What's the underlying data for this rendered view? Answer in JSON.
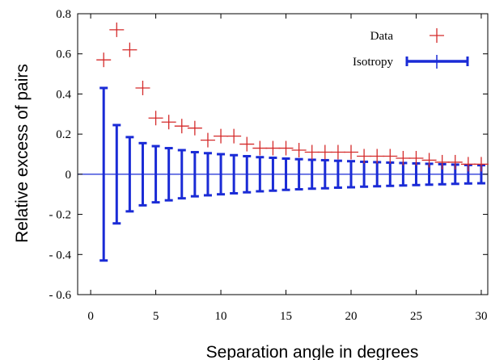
{
  "chart_data": {
    "type": "scatter",
    "xlabel": "Separation angle in degrees",
    "ylabel": "Relative excess of pairs",
    "xlim": [
      -1,
      30.5
    ],
    "ylim": [
      -0.6,
      0.8
    ],
    "xticks": [
      0,
      5,
      10,
      15,
      20,
      25,
      30
    ],
    "yticks": [
      -0.6,
      -0.4,
      -0.2,
      0,
      0.2,
      0.4,
      0.6,
      0.8
    ],
    "xtick_labels": [
      "0",
      "5",
      "10",
      "15",
      "20",
      "25",
      "30"
    ],
    "ytick_labels": [
      "- 0.6",
      "- 0.4",
      "- 0.2",
      "0",
      "0.2",
      "0.4",
      "0.6",
      "0.8"
    ],
    "grid": false,
    "legend_position": "top-right",
    "series": [
      {
        "name": "Data",
        "marker": "plus",
        "color": "#d42a2a",
        "x": [
          1,
          2,
          3,
          4,
          5,
          6,
          7,
          8,
          9,
          10,
          11,
          12,
          13,
          14,
          15,
          16,
          17,
          18,
          19,
          20,
          21,
          22,
          23,
          24,
          25,
          26,
          27,
          28,
          29,
          30
        ],
        "y": [
          0.57,
          0.72,
          0.62,
          0.43,
          0.28,
          0.26,
          0.24,
          0.23,
          0.17,
          0.19,
          0.19,
          0.15,
          0.13,
          0.13,
          0.13,
          0.12,
          0.11,
          0.11,
          0.11,
          0.11,
          0.09,
          0.09,
          0.09,
          0.08,
          0.08,
          0.07,
          0.06,
          0.06,
          0.05,
          0.05
        ]
      },
      {
        "name": "Isotropy",
        "marker": "errorbar",
        "color": "#1a2bd6",
        "x": [
          1,
          2,
          3,
          4,
          5,
          6,
          7,
          8,
          9,
          10,
          11,
          12,
          13,
          14,
          15,
          16,
          17,
          18,
          19,
          20,
          21,
          22,
          23,
          24,
          25,
          26,
          27,
          28,
          29,
          30
        ],
        "y": [
          0,
          0,
          0,
          0,
          0,
          0,
          0,
          0,
          0,
          0,
          0,
          0,
          0,
          0,
          0,
          0,
          0,
          0,
          0,
          0,
          0,
          0,
          0,
          0,
          0,
          0,
          0,
          0,
          0,
          0
        ],
        "err": [
          0.43,
          0.245,
          0.185,
          0.155,
          0.14,
          0.13,
          0.12,
          0.11,
          0.105,
          0.1,
          0.095,
          0.09,
          0.085,
          0.082,
          0.078,
          0.075,
          0.072,
          0.07,
          0.067,
          0.065,
          0.062,
          0.06,
          0.058,
          0.056,
          0.054,
          0.052,
          0.05,
          0.048,
          0.046,
          0.045
        ]
      }
    ]
  }
}
